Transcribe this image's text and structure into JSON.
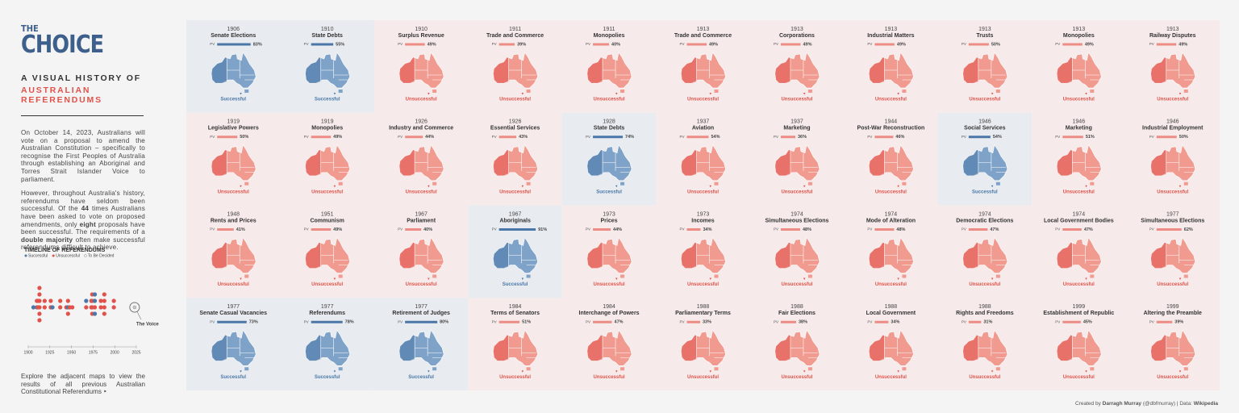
{
  "header": {
    "title_small": "THE",
    "title_big": "CHOICE",
    "subtitle_1": "A VISUAL HISTORY OF",
    "subtitle_2": "AUSTRALIAN REFERENDUMS"
  },
  "intro": [
    [
      {
        "t": "On October 14, 2023, Australians will vote on a proposal to amend the Australian Constitution – specifically to recognise the First Peoples of Australia through establishing an Aboriginal and Torres Strait Islander Voice to parliament."
      }
    ],
    [
      {
        "t": "However, throughout Australia's history, referendums have seldom been successful. Of the "
      },
      {
        "t": "44",
        "b": true
      },
      {
        "t": " times Australians have been asked to vote on proposed amendments, only "
      },
      {
        "t": "eight",
        "b": true
      },
      {
        "t": " proposals have been successful. The requirements of a "
      },
      {
        "t": "double majority",
        "b": true
      },
      {
        "t": " often make successful referendums difficult to achieve."
      }
    ]
  ],
  "timeline": {
    "title": "TIMELINE OF REFERENDUMS",
    "legend": [
      "Successful",
      "Unsuccessful",
      "To Be Decided"
    ],
    "xlim": [
      1900,
      2025
    ],
    "xticks": [
      1900,
      1925,
      1950,
      1975,
      2000,
      2025
    ],
    "pending_year": 2023,
    "pending_label": "The Voice"
  },
  "outro": "Explore the adjacent maps to view the results of all previous Australian Constitutional Referendums ‣",
  "pv_label": "PV",
  "results": {
    "success": "Successful",
    "fail": "Unsuccessful"
  },
  "referendums": [
    {
      "year": 1906,
      "title": "Senate Elections",
      "pv": 83,
      "pv_label": "83%",
      "success": true
    },
    {
      "year": 1910,
      "title": "State Debts",
      "pv": 55,
      "pv_label": "55%",
      "success": true
    },
    {
      "year": 1910,
      "title": "Surplus Revenue",
      "pv": 49,
      "pv_label": "49%",
      "success": false
    },
    {
      "year": 1911,
      "title": "Trade and Commerce",
      "pv": 39,
      "pv_label": "39%",
      "success": false
    },
    {
      "year": 1911,
      "title": "Monopolies",
      "pv": 40,
      "pv_label": "40%",
      "success": false
    },
    {
      "year": 1913,
      "title": "Trade and Commerce",
      "pv": 49,
      "pv_label": "49%",
      "success": false
    },
    {
      "year": 1913,
      "title": "Corporations",
      "pv": 49,
      "pv_label": "49%",
      "success": false
    },
    {
      "year": 1913,
      "title": "Industrial Matters",
      "pv": 49,
      "pv_label": "49%",
      "success": false
    },
    {
      "year": 1913,
      "title": "Trusts",
      "pv": 50,
      "pv_label": "50%",
      "success": false
    },
    {
      "year": 1913,
      "title": "Monopolies",
      "pv": 49,
      "pv_label": "49%",
      "success": false
    },
    {
      "year": 1913,
      "title": "Railway Disputes",
      "pv": 49,
      "pv_label": "49%",
      "success": false
    },
    {
      "year": 1919,
      "title": "Legislative Powers",
      "pv": 50,
      "pv_label": "50%",
      "success": false
    },
    {
      "year": 1919,
      "title": "Monopolies",
      "pv": 49,
      "pv_label": "49%",
      "success": false
    },
    {
      "year": 1926,
      "title": "Industry and Commerce",
      "pv": 44,
      "pv_label": "44%",
      "success": false
    },
    {
      "year": 1926,
      "title": "Essential Services",
      "pv": 43,
      "pv_label": "43%",
      "success": false
    },
    {
      "year": 1928,
      "title": "State Debts",
      "pv": 74,
      "pv_label": "74%",
      "success": true
    },
    {
      "year": 1937,
      "title": "Aviation",
      "pv": 54,
      "pv_label": "54%",
      "success": false
    },
    {
      "year": 1937,
      "title": "Marketing",
      "pv": 36,
      "pv_label": "36%",
      "success": false
    },
    {
      "year": 1944,
      "title": "Post-War Reconstruction",
      "pv": 46,
      "pv_label": "46%",
      "success": false
    },
    {
      "year": 1946,
      "title": "Social Services",
      "pv": 54,
      "pv_label": "54%",
      "success": true
    },
    {
      "year": 1946,
      "title": "Marketing",
      "pv": 51,
      "pv_label": "51%",
      "success": false
    },
    {
      "year": 1946,
      "title": "Industrial Employment",
      "pv": 50,
      "pv_label": "50%",
      "success": false
    },
    {
      "year": 1948,
      "title": "Rents and Prices",
      "pv": 41,
      "pv_label": "41%",
      "success": false
    },
    {
      "year": 1951,
      "title": "Communism",
      "pv": 49,
      "pv_label": "49%",
      "success": false
    },
    {
      "year": 1967,
      "title": "Parliament",
      "pv": 40,
      "pv_label": "40%",
      "success": false
    },
    {
      "year": 1967,
      "title": "Aboriginals",
      "pv": 91,
      "pv_label": "91%",
      "success": true
    },
    {
      "year": 1973,
      "title": "Prices",
      "pv": 44,
      "pv_label": "44%",
      "success": false
    },
    {
      "year": 1973,
      "title": "Incomes",
      "pv": 34,
      "pv_label": "34%",
      "success": false
    },
    {
      "year": 1974,
      "title": "Simultaneous Elections",
      "pv": 48,
      "pv_label": "48%",
      "success": false
    },
    {
      "year": 1974,
      "title": "Mode of Alteration",
      "pv": 48,
      "pv_label": "48%",
      "success": false
    },
    {
      "year": 1974,
      "title": "Democratic Elections",
      "pv": 47,
      "pv_label": "47%",
      "success": false
    },
    {
      "year": 1974,
      "title": "Local Government Bodies",
      "pv": 47,
      "pv_label": "47%",
      "success": false
    },
    {
      "year": 1977,
      "title": "Simultaneous Elections",
      "pv": 62,
      "pv_label": "62%",
      "success": false
    },
    {
      "year": 1977,
      "title": "Senate Casual Vacancies",
      "pv": 73,
      "pv_label": "73%",
      "success": true
    },
    {
      "year": 1977,
      "title": "Referendums",
      "pv": 78,
      "pv_label": "78%",
      "success": true
    },
    {
      "year": 1977,
      "title": "Retirement of Judges",
      "pv": 80,
      "pv_label": "80%",
      "success": true
    },
    {
      "year": 1984,
      "title": "Terms of Senators",
      "pv": 51,
      "pv_label": "51%",
      "success": false
    },
    {
      "year": 1984,
      "title": "Interchange of Powers",
      "pv": 47,
      "pv_label": "47%",
      "success": false
    },
    {
      "year": 1988,
      "title": "Parliamentary Terms",
      "pv": 33,
      "pv_label": "33%",
      "success": false
    },
    {
      "year": 1988,
      "title": "Fair Elections",
      "pv": 38,
      "pv_label": "38%",
      "success": false
    },
    {
      "year": 1988,
      "title": "Local Government",
      "pv": 34,
      "pv_label": "34%",
      "success": false
    },
    {
      "year": 1988,
      "title": "Rights and Freedoms",
      "pv": 31,
      "pv_label": "31%",
      "success": false
    },
    {
      "year": 1999,
      "title": "Establishment of Republic",
      "pv": 45,
      "pv_label": "45%",
      "success": false
    },
    {
      "year": 1999,
      "title": "Altering the Preamble",
      "pv": 39,
      "pv_label": "39%",
      "success": false
    }
  ],
  "footer": {
    "prefix": "Created by",
    "author": "Darragh Murray",
    "handle": "(@dbfmurray) | Data:",
    "source": "Wikipedia"
  }
}
